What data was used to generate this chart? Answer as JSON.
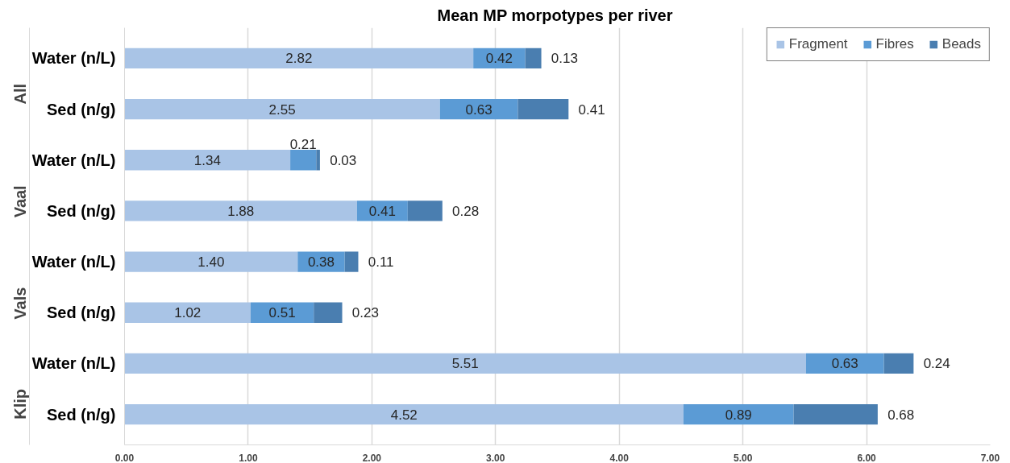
{
  "chart_data": {
    "type": "bar",
    "orientation": "horizontal",
    "stacked": true,
    "title": "Mean MP morpotypes  per river",
    "categories": [
      "Water (n/L)",
      "Sed (n/g)",
      "Water (n/L)",
      "Sed (n/g)",
      "Water (n/L)",
      "Sed (n/g)",
      "Water (n/L)",
      "Sed (n/g)"
    ],
    "annotations": [
      "All",
      "Vaal",
      "Vals",
      "Klip"
    ],
    "series": [
      {
        "name": "Fragment",
        "color": "#a9c4e6",
        "values": [
          2.82,
          2.55,
          1.34,
          1.88,
          1.4,
          1.02,
          5.51,
          4.52
        ],
        "value_labels": [
          "2.82",
          "2.55",
          "1.34",
          "1.88",
          "1.40",
          "1.02",
          "5.51",
          "4.52"
        ]
      },
      {
        "name": "Fibres",
        "color": "#5b9bd5",
        "values": [
          0.42,
          0.63,
          0.21,
          0.41,
          0.38,
          0.51,
          0.63,
          0.89
        ],
        "value_labels": [
          "0.42",
          "0.63",
          "0.21",
          "0.41",
          "0.38",
          "0.51",
          "0.63",
          "0.89"
        ]
      },
      {
        "name": "Beads",
        "color": "#4a7eb0",
        "values": [
          0.13,
          0.41,
          0.03,
          0.28,
          0.11,
          0.23,
          0.24,
          0.68
        ],
        "value_labels": [
          "0.13",
          "0.41",
          "0.03",
          "0.28",
          "0.11",
          "0.23",
          "0.24",
          "0.68"
        ]
      }
    ],
    "xlim": [
      0,
      7
    ],
    "xticks": [
      {
        "value": 0,
        "label": "0.00"
      },
      {
        "value": 1,
        "label": "1.00"
      },
      {
        "value": 2,
        "label": "2.00"
      },
      {
        "value": 3,
        "label": "3.00"
      },
      {
        "value": 4,
        "label": "4.00"
      },
      {
        "value": 5,
        "label": "5.00"
      },
      {
        "value": 6,
        "label": "6.00"
      },
      {
        "value": 7,
        "label": "7.00"
      }
    ],
    "grid": "x",
    "legend": "top right"
  }
}
